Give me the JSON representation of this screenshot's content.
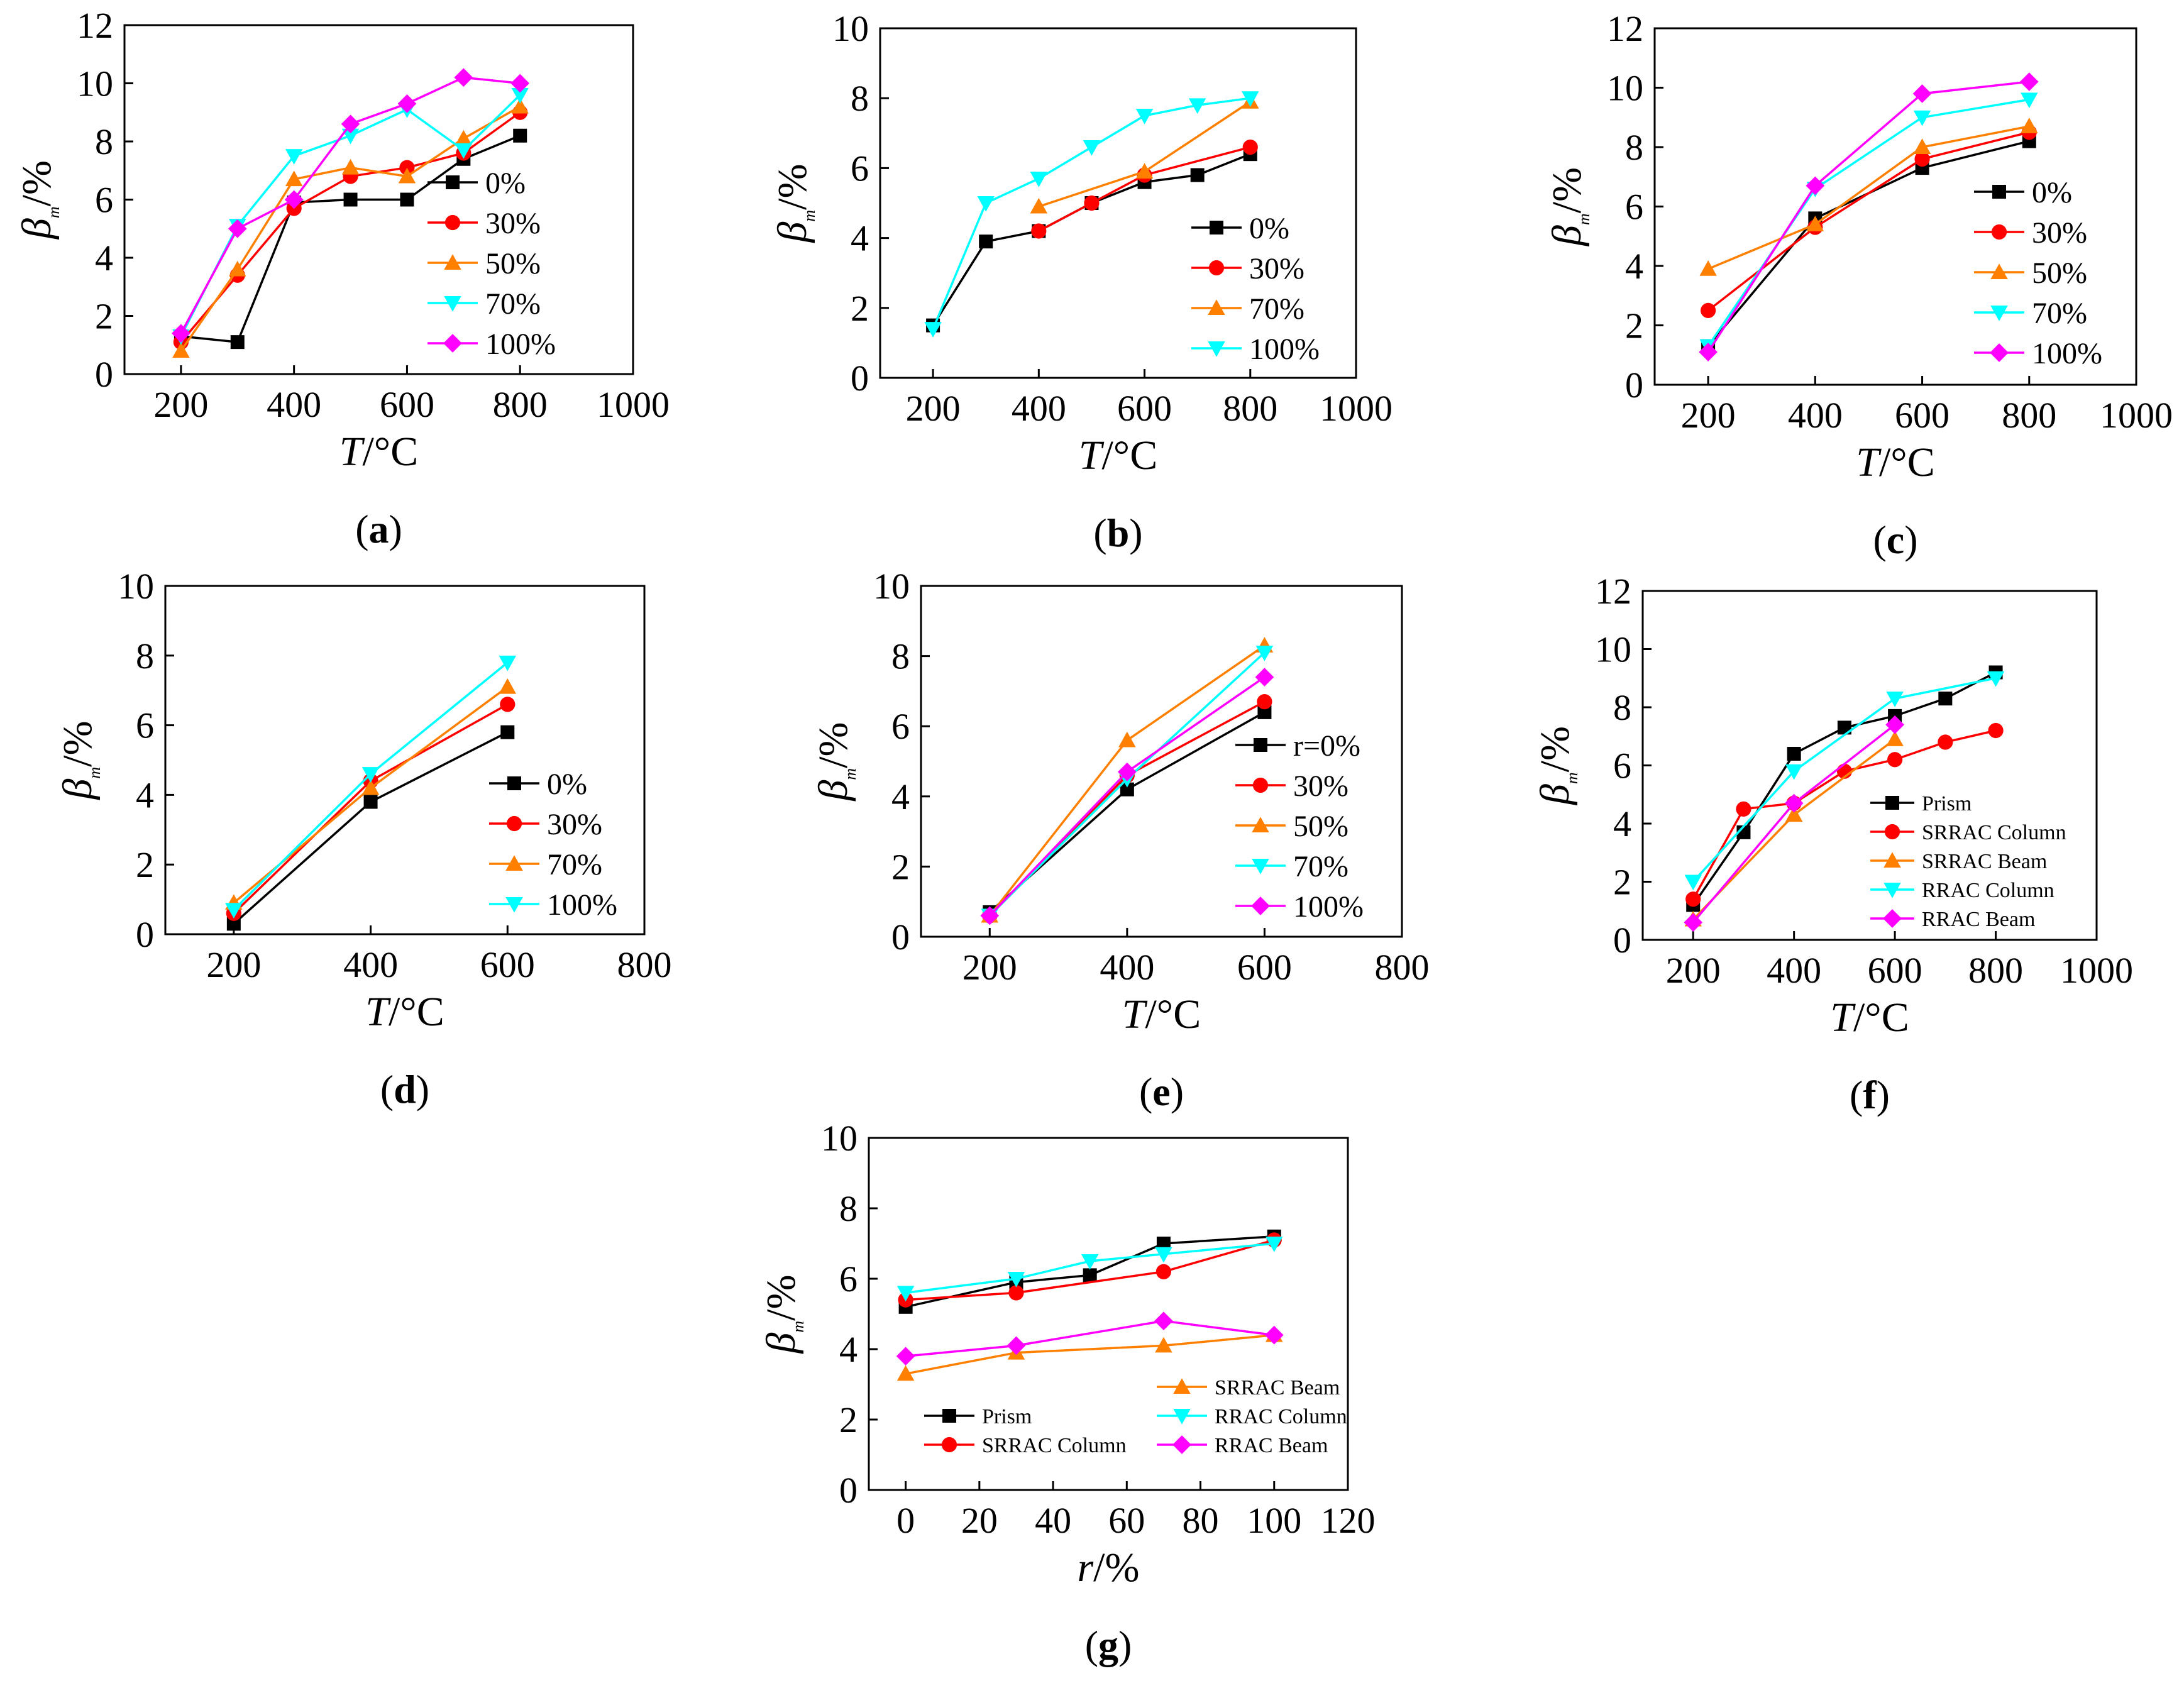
{
  "chart_data": [
    {
      "id": "a",
      "type": "line",
      "panel_label": "a",
      "xlabel": "T/°C",
      "ylabel": "βm/%",
      "xlim": [
        100,
        1000
      ],
      "ylim": [
        0,
        12
      ],
      "xticks": [
        200,
        400,
        600,
        800,
        1000
      ],
      "yticks": [
        0,
        2,
        4,
        6,
        8,
        10,
        12
      ],
      "legend_position": "right-middle",
      "series": [
        {
          "name": "0%",
          "color": "#000000",
          "marker": "square",
          "x": [
            200,
            300,
            400,
            500,
            600,
            700,
            800
          ],
          "y": [
            1.3,
            1.1,
            5.9,
            6.0,
            6.0,
            7.4,
            8.2
          ]
        },
        {
          "name": "30%",
          "color": "#ff0000",
          "marker": "circle",
          "x": [
            200,
            300,
            400,
            500,
            600,
            700,
            800
          ],
          "y": [
            1.1,
            3.4,
            5.7,
            6.8,
            7.1,
            7.6,
            9.0
          ]
        },
        {
          "name": "50%",
          "color": "#ff8000",
          "marker": "triangle-up",
          "x": [
            200,
            300,
            400,
            500,
            600,
            700,
            800
          ],
          "y": [
            0.8,
            3.6,
            6.7,
            7.1,
            6.8,
            8.1,
            9.2
          ]
        },
        {
          "name": "70%",
          "color": "#00ffff",
          "marker": "triangle-down",
          "x": [
            200,
            300,
            400,
            500,
            600,
            700,
            800
          ],
          "y": [
            1.3,
            5.1,
            7.5,
            8.2,
            9.1,
            7.7,
            9.6
          ]
        },
        {
          "name": "100%",
          "color": "#ff00ff",
          "marker": "diamond",
          "x": [
            200,
            300,
            400,
            500,
            600,
            700,
            800
          ],
          "y": [
            1.4,
            5.0,
            6.0,
            8.6,
            9.3,
            10.2,
            10.0
          ]
        }
      ]
    },
    {
      "id": "b",
      "type": "line",
      "panel_label": "b",
      "xlabel": "T/°C",
      "ylabel": "βm/%",
      "xlim": [
        100,
        1000
      ],
      "ylim": [
        0,
        10
      ],
      "xticks": [
        200,
        400,
        600,
        800,
        1000
      ],
      "yticks": [
        0,
        2,
        4,
        6,
        8,
        10
      ],
      "legend_position": "bottom-right",
      "series": [
        {
          "name": "0%",
          "color": "#000000",
          "marker": "square",
          "x": [
            200,
            300,
            400,
            500,
            600,
            700,
            800
          ],
          "y": [
            1.5,
            3.9,
            4.2,
            5.0,
            5.6,
            5.8,
            6.4
          ]
        },
        {
          "name": "30%",
          "color": "#ff0000",
          "marker": "circle",
          "x": [
            400,
            500,
            600,
            800
          ],
          "y": [
            4.2,
            5.0,
            5.8,
            6.6
          ]
        },
        {
          "name": "70%",
          "color": "#ff8000",
          "marker": "triangle-up",
          "x": [
            400,
            600,
            800
          ],
          "y": [
            4.9,
            5.9,
            7.9
          ]
        },
        {
          "name": "100%",
          "color": "#00ffff",
          "marker": "triangle-down",
          "x": [
            200,
            300,
            400,
            500,
            600,
            700,
            800
          ],
          "y": [
            1.4,
            5.0,
            5.7,
            6.6,
            7.5,
            7.8,
            8.0
          ]
        }
      ]
    },
    {
      "id": "c",
      "type": "line",
      "panel_label": "c",
      "xlabel": "T/°C",
      "ylabel": "βm/%",
      "xlim": [
        100,
        1000
      ],
      "ylim": [
        0,
        12
      ],
      "xticks": [
        200,
        400,
        600,
        800,
        1000
      ],
      "yticks": [
        0,
        2,
        4,
        6,
        8,
        10,
        12
      ],
      "legend_position": "bottom-right",
      "series": [
        {
          "name": "0%",
          "color": "#000000",
          "marker": "square",
          "x": [
            200,
            400,
            600,
            800
          ],
          "y": [
            1.3,
            5.6,
            7.3,
            8.2
          ]
        },
        {
          "name": "30%",
          "color": "#ff0000",
          "marker": "circle",
          "x": [
            200,
            400,
            600,
            800
          ],
          "y": [
            2.5,
            5.3,
            7.6,
            8.5
          ]
        },
        {
          "name": "50%",
          "color": "#ff8000",
          "marker": "triangle-up",
          "x": [
            200,
            400,
            600,
            800
          ],
          "y": [
            3.9,
            5.4,
            8.0,
            8.7
          ]
        },
        {
          "name": "70%",
          "color": "#00ffff",
          "marker": "triangle-down",
          "x": [
            200,
            400,
            600,
            800
          ],
          "y": [
            1.3,
            6.6,
            9.0,
            9.6
          ]
        },
        {
          "name": "100%",
          "color": "#ff00ff",
          "marker": "diamond",
          "x": [
            200,
            400,
            600,
            800
          ],
          "y": [
            1.1,
            6.7,
            9.8,
            10.2
          ]
        }
      ]
    },
    {
      "id": "d",
      "type": "line",
      "panel_label": "d",
      "xlabel": "T/°C",
      "ylabel": "βm/%",
      "xlim": [
        100,
        800
      ],
      "ylim": [
        0,
        10
      ],
      "xticks": [
        200,
        400,
        600,
        800
      ],
      "yticks": [
        0,
        2,
        4,
        6,
        8,
        10
      ],
      "legend_position": "bottom-right",
      "series": [
        {
          "name": "0%",
          "color": "#000000",
          "marker": "square",
          "x": [
            200,
            400,
            600
          ],
          "y": [
            0.3,
            3.8,
            5.8
          ]
        },
        {
          "name": "30%",
          "color": "#ff0000",
          "marker": "circle",
          "x": [
            200,
            400,
            600
          ],
          "y": [
            0.6,
            4.4,
            6.6
          ]
        },
        {
          "name": "70%",
          "color": "#ff8000",
          "marker": "triangle-up",
          "x": [
            200,
            400,
            600
          ],
          "y": [
            0.9,
            4.2,
            7.1
          ]
        },
        {
          "name": "100%",
          "color": "#00ffff",
          "marker": "triangle-down",
          "x": [
            200,
            400,
            600
          ],
          "y": [
            0.7,
            4.6,
            7.8
          ]
        }
      ]
    },
    {
      "id": "e",
      "type": "line",
      "panel_label": "e",
      "xlabel": "T/°C",
      "ylabel": "βm/%",
      "xlim": [
        100,
        800
      ],
      "ylim": [
        0,
        10
      ],
      "xticks": [
        200,
        400,
        600,
        800
      ],
      "yticks": [
        0,
        2,
        4,
        6,
        8,
        10
      ],
      "legend_position": "bottom-right",
      "series": [
        {
          "name": "r=0%",
          "color": "#000000",
          "marker": "square",
          "x": [
            200,
            400,
            600
          ],
          "y": [
            0.7,
            4.2,
            6.4
          ]
        },
        {
          "name": "30%",
          "color": "#ff0000",
          "marker": "circle",
          "x": [
            200,
            400,
            600
          ],
          "y": [
            0.6,
            4.6,
            6.7
          ]
        },
        {
          "name": "50%",
          "color": "#ff8000",
          "marker": "triangle-up",
          "x": [
            200,
            400,
            600
          ],
          "y": [
            0.6,
            5.6,
            8.3
          ]
        },
        {
          "name": "70%",
          "color": "#00ffff",
          "marker": "triangle-down",
          "x": [
            200,
            400,
            600
          ],
          "y": [
            0.6,
            4.5,
            8.1
          ]
        },
        {
          "name": "100%",
          "color": "#ff00ff",
          "marker": "diamond",
          "x": [
            200,
            400,
            600
          ],
          "y": [
            0.6,
            4.7,
            7.4
          ]
        }
      ]
    },
    {
      "id": "f",
      "type": "line",
      "panel_label": "f",
      "xlabel": "T/°C",
      "ylabel": "βm/%",
      "xlim": [
        100,
        1000
      ],
      "ylim": [
        0,
        12
      ],
      "xticks": [
        200,
        400,
        600,
        800,
        1000
      ],
      "yticks": [
        0,
        2,
        4,
        6,
        8,
        10,
        12
      ],
      "legend_position": "bottom-right",
      "series": [
        {
          "name": "Prism",
          "color": "#000000",
          "marker": "square",
          "x": [
            200,
            300,
            400,
            500,
            600,
            700,
            800
          ],
          "y": [
            1.2,
            3.7,
            6.4,
            7.3,
            7.7,
            8.3,
            9.2
          ]
        },
        {
          "name": "SRRAC Column",
          "color": "#ff0000",
          "marker": "circle",
          "x": [
            200,
            300,
            400,
            500,
            600,
            700,
            800
          ],
          "y": [
            1.4,
            4.5,
            4.7,
            5.8,
            6.2,
            6.8,
            7.2
          ]
        },
        {
          "name": "SRRAC Beam",
          "color": "#ff8000",
          "marker": "triangle-up",
          "x": [
            200,
            400,
            600
          ],
          "y": [
            0.7,
            4.3,
            6.9
          ]
        },
        {
          "name": "RRAC Column",
          "color": "#00ffff",
          "marker": "triangle-down",
          "x": [
            200,
            400,
            600,
            800
          ],
          "y": [
            2.0,
            5.8,
            8.3,
            9.0
          ]
        },
        {
          "name": "RRAC Beam",
          "color": "#ff00ff",
          "marker": "diamond",
          "x": [
            200,
            400,
            600
          ],
          "y": [
            0.6,
            4.7,
            7.4
          ]
        }
      ]
    },
    {
      "id": "g",
      "type": "line",
      "panel_label": "g",
      "xlabel": "r/%",
      "ylabel": "βm/%",
      "xlim": [
        -10,
        120
      ],
      "ylim": [
        0,
        10
      ],
      "xticks": [
        0,
        20,
        40,
        60,
        80,
        100,
        120
      ],
      "yticks": [
        0,
        2,
        4,
        6,
        8,
        10
      ],
      "legend_position": "bottom",
      "series": [
        {
          "name": "Prism",
          "color": "#000000",
          "marker": "square",
          "x": [
            0,
            30,
            50,
            70,
            100
          ],
          "y": [
            5.2,
            5.9,
            6.1,
            7.0,
            7.2
          ]
        },
        {
          "name": "SRRAC Column",
          "color": "#ff0000",
          "marker": "circle",
          "x": [
            0,
            30,
            70,
            100
          ],
          "y": [
            5.4,
            5.6,
            6.2,
            7.1
          ]
        },
        {
          "name": "SRRAC Beam",
          "color": "#ff8000",
          "marker": "triangle-up",
          "x": [
            0,
            30,
            70,
            100
          ],
          "y": [
            3.3,
            3.9,
            4.1,
            4.4
          ]
        },
        {
          "name": "RRAC Column",
          "color": "#00ffff",
          "marker": "triangle-down",
          "x": [
            0,
            30,
            50,
            70,
            100
          ],
          "y": [
            5.6,
            6.0,
            6.5,
            6.7,
            7.0
          ]
        },
        {
          "name": "RRAC Beam",
          "color": "#ff00ff",
          "marker": "diamond",
          "x": [
            0,
            30,
            70,
            100
          ],
          "y": [
            3.8,
            4.1,
            4.8,
            4.4
          ]
        }
      ]
    }
  ]
}
